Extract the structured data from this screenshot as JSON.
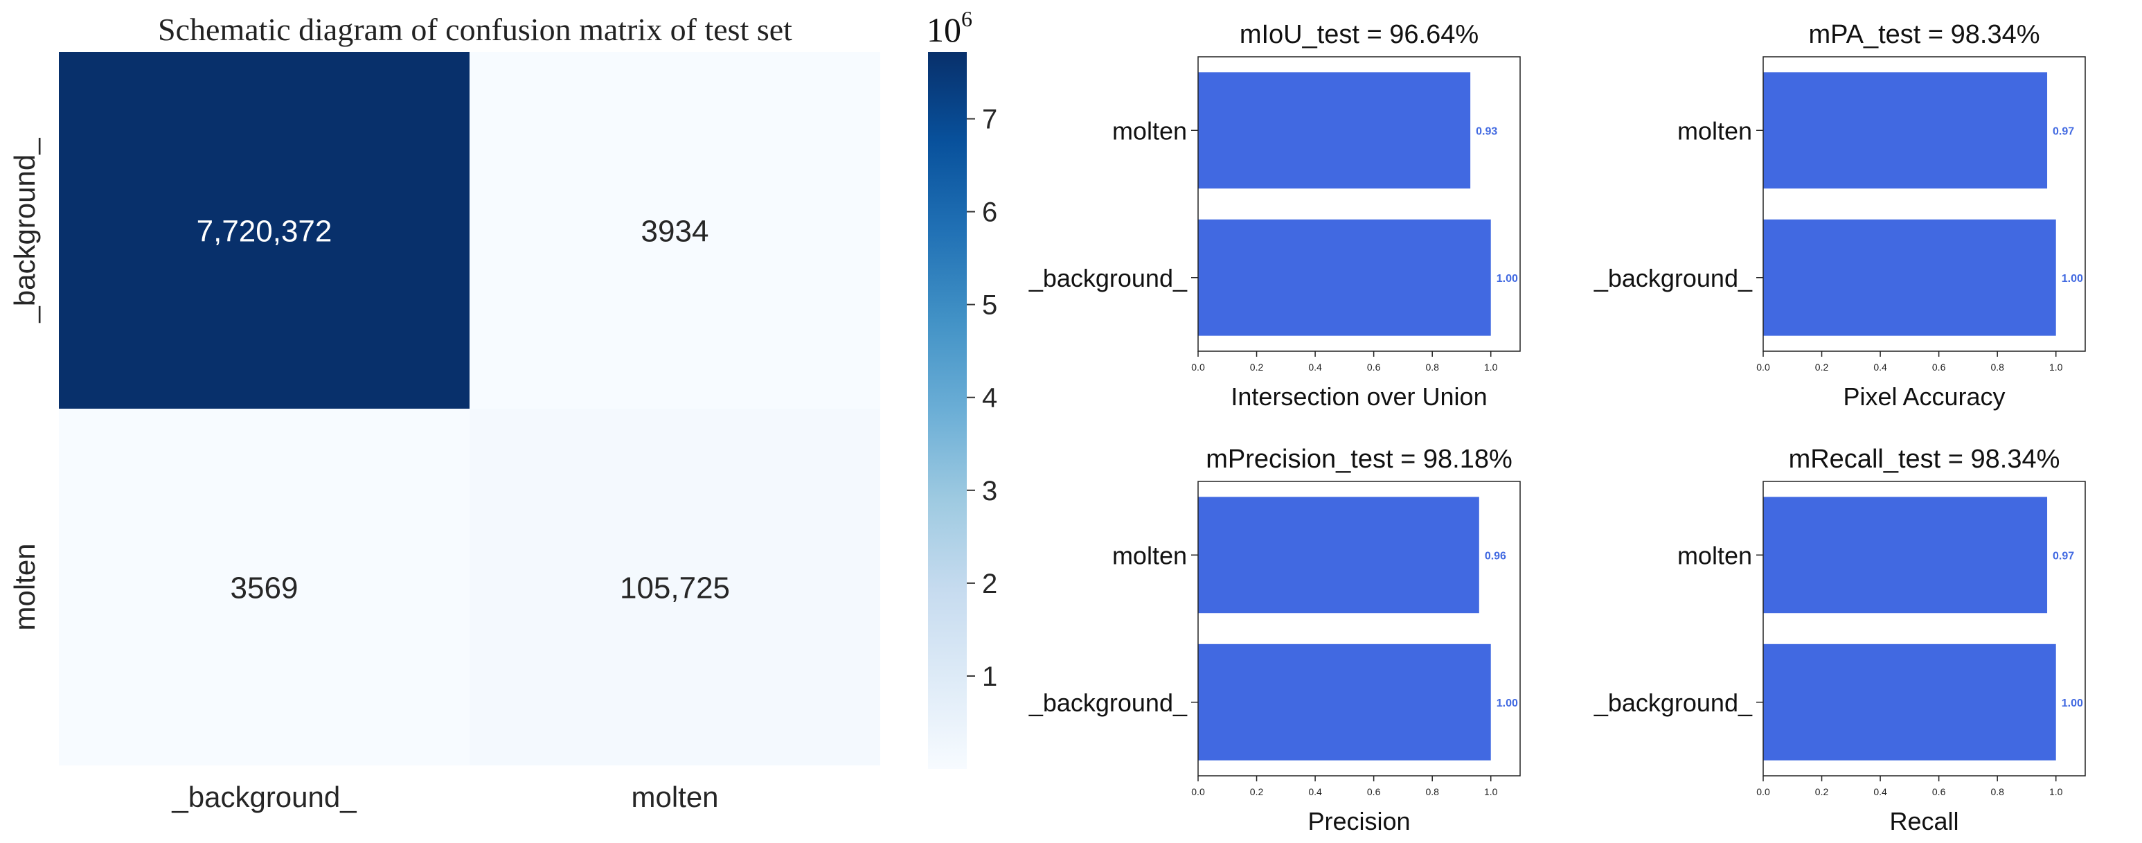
{
  "chart_data": [
    {
      "type": "heatmap",
      "title": "Schematic diagram of confusion matrix of test set",
      "rows": [
        "_background_",
        "molten"
      ],
      "cols": [
        "_background_",
        "molten"
      ],
      "values": [
        [
          7720372,
          3934
        ],
        [
          3569,
          105725
        ]
      ],
      "cell_labels": [
        [
          "7,720,372",
          "3934"
        ],
        [
          "3569",
          "105,725"
        ]
      ],
      "colorbar": {
        "exponent_label": "10",
        "exponent_power": "6",
        "ticks": [
          1,
          2,
          3,
          4,
          5,
          6,
          7
        ],
        "range": [
          0,
          7.72
        ],
        "colors": [
          "#f7fbff",
          "#deebf7",
          "#c6dbef",
          "#9ecae1",
          "#6baed6",
          "#4292c6",
          "#2171b5",
          "#08519c",
          "#08306b"
        ]
      }
    },
    {
      "type": "bar",
      "orientation": "horizontal",
      "title": "mIoU_test = 96.64%",
      "xlabel": "Intersection over Union",
      "categories": [
        "molten",
        "_background_"
      ],
      "values": [
        0.93,
        1.0
      ],
      "value_labels": [
        "0.93",
        "1.00"
      ],
      "xlim": [
        0,
        1.1
      ],
      "xticks": [
        "0.0",
        "0.2",
        "0.4",
        "0.6",
        "0.8",
        "1.0"
      ],
      "bar_color": "#4169e1"
    },
    {
      "type": "bar",
      "orientation": "horizontal",
      "title": "mPA_test = 98.34%",
      "xlabel": "Pixel Accuracy",
      "categories": [
        "molten",
        "_background_"
      ],
      "values": [
        0.97,
        1.0
      ],
      "value_labels": [
        "0.97",
        "1.00"
      ],
      "xlim": [
        0,
        1.1
      ],
      "xticks": [
        "0.0",
        "0.2",
        "0.4",
        "0.6",
        "0.8",
        "1.0"
      ],
      "bar_color": "#4169e1"
    },
    {
      "type": "bar",
      "orientation": "horizontal",
      "title": "mPrecision_test = 98.18%",
      "xlabel": "Precision",
      "categories": [
        "molten",
        "_background_"
      ],
      "values": [
        0.96,
        1.0
      ],
      "value_labels": [
        "0.96",
        "1.00"
      ],
      "xlim": [
        0,
        1.1
      ],
      "xticks": [
        "0.0",
        "0.2",
        "0.4",
        "0.6",
        "0.8",
        "1.0"
      ],
      "bar_color": "#4169e1"
    },
    {
      "type": "bar",
      "orientation": "horizontal",
      "title": "mRecall_test = 98.34%",
      "xlabel": "Recall",
      "categories": [
        "molten",
        "_background_"
      ],
      "values": [
        0.97,
        1.0
      ],
      "value_labels": [
        "0.97",
        "1.00"
      ],
      "xlim": [
        0,
        1.1
      ],
      "xticks": [
        "0.0",
        "0.2",
        "0.4",
        "0.6",
        "0.8",
        "1.0"
      ],
      "bar_color": "#4169e1"
    }
  ]
}
